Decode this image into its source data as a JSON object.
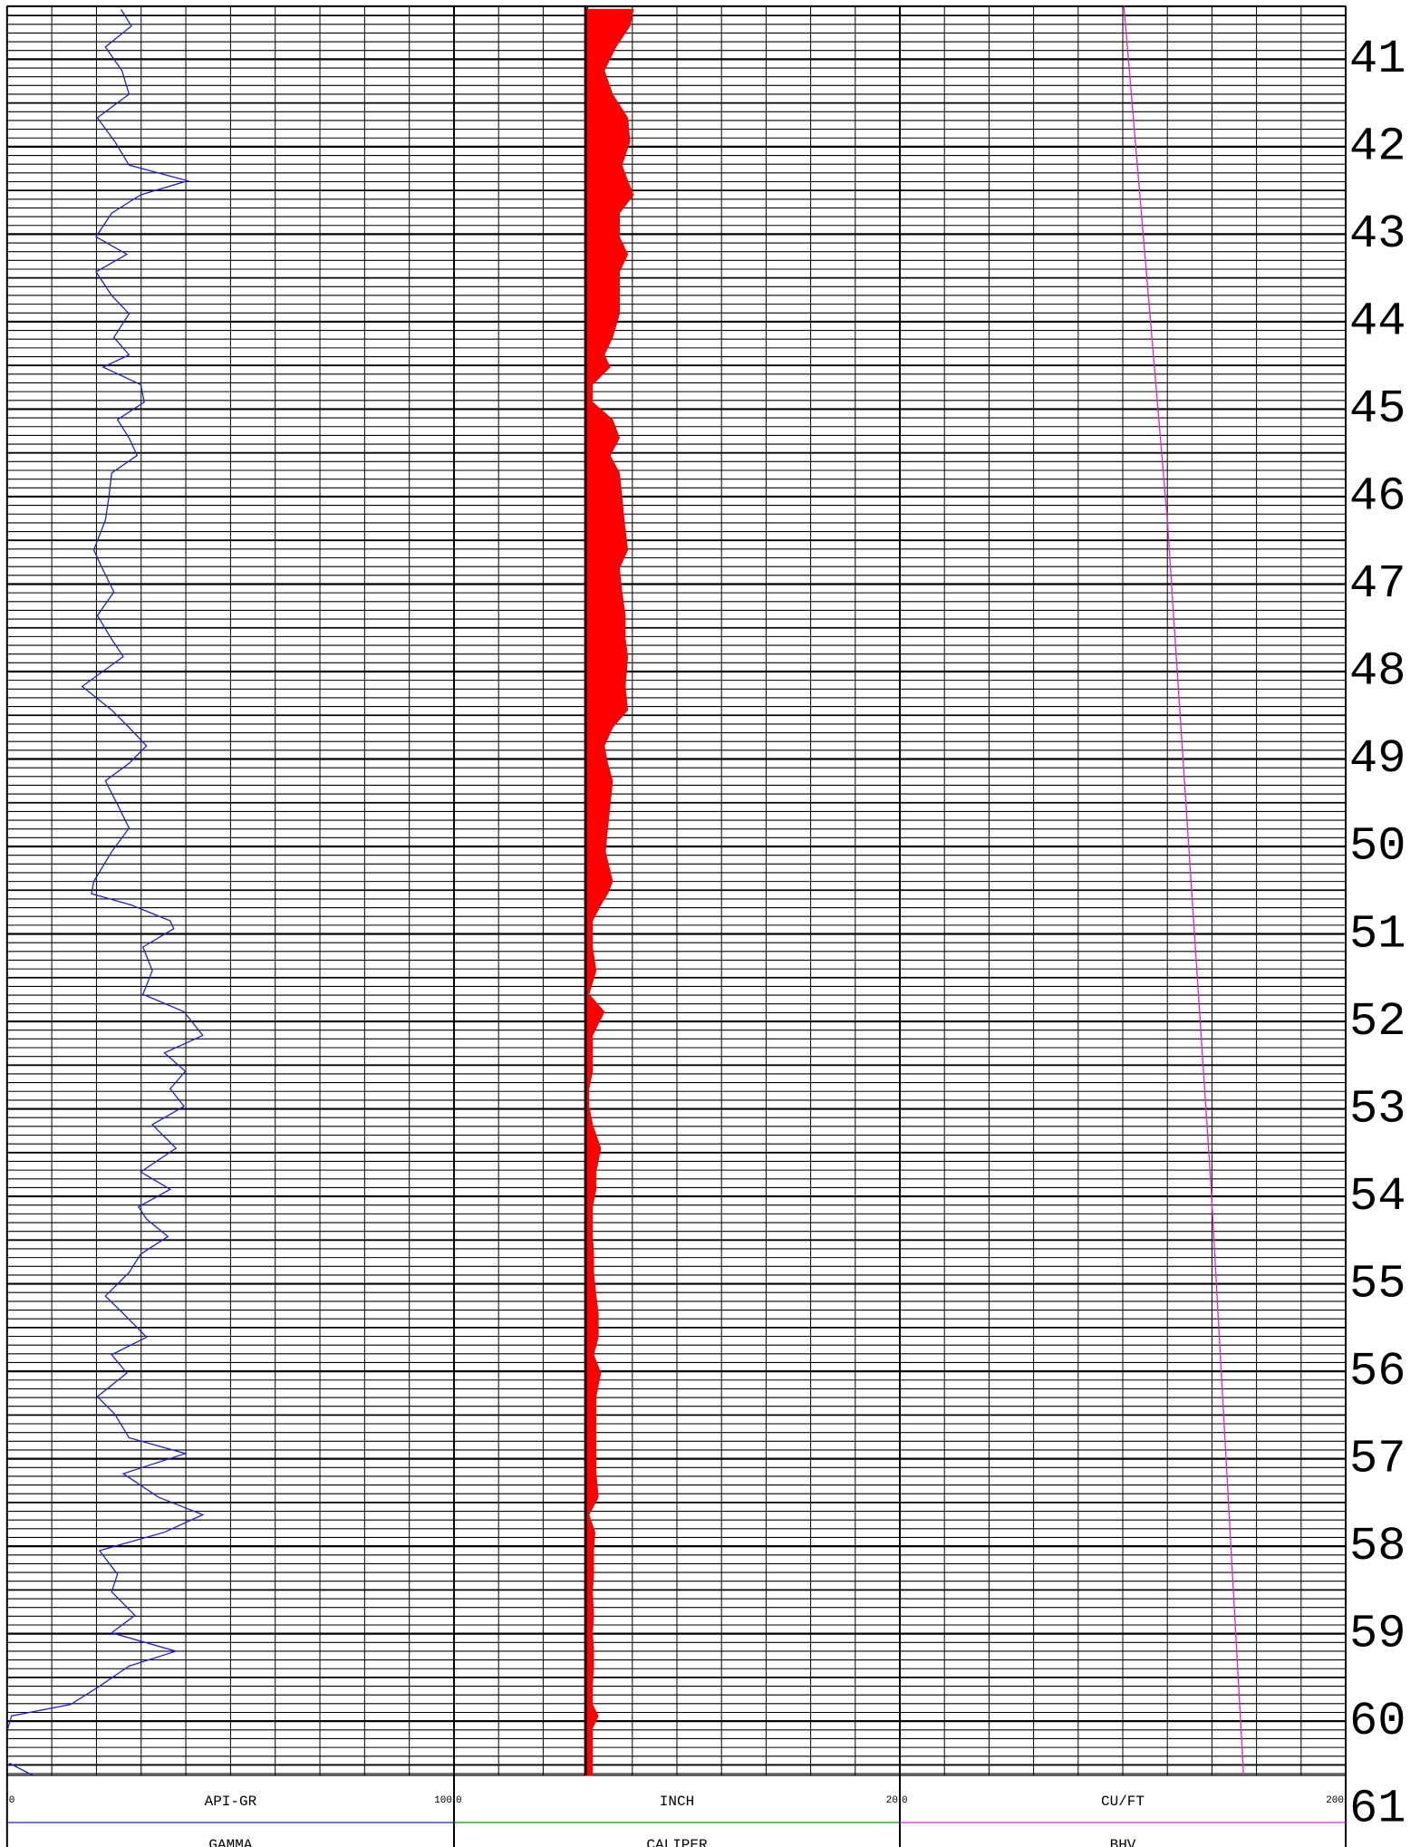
{
  "chart_data": {
    "type": "log",
    "ylim": [
      40.39,
      60.62
    ],
    "depth_ticks": [
      41,
      42,
      43,
      44,
      45,
      46,
      47,
      48,
      49,
      50,
      51,
      52,
      53,
      54,
      55,
      56,
      57,
      58,
      59,
      60,
      61
    ],
    "grid": true,
    "tracks": [
      {
        "xlabel": "API-GR",
        "xlim": [
          0,
          100
        ],
        "xticks": [
          0,
          100
        ],
        "series": [
          {
            "name": "GAMMA",
            "color": "#2020d0",
            "depth": [
              40.43,
              40.62,
              40.86,
              41.13,
              41.4,
              41.67,
              41.94,
              42.21,
              42.39,
              42.55,
              42.76,
              43.03,
              43.23,
              43.43,
              43.7,
              43.91,
              44.18,
              44.38,
              44.52,
              44.72,
              44.92,
              45.12,
              45.33,
              45.53,
              45.73,
              46.0,
              46.27,
              46.61,
              46.82,
              47.09,
              47.36,
              47.63,
              47.83,
              48.17,
              48.44,
              48.64,
              48.85,
              49.05,
              49.25,
              49.52,
              49.79,
              50.06,
              50.4,
              50.54,
              50.67,
              50.85,
              50.94,
              51.15,
              51.42,
              51.69,
              51.89,
              52.16,
              52.36,
              52.57,
              52.77,
              52.97,
              53.18,
              53.45,
              53.72,
              53.92,
              54.12,
              54.26,
              54.46,
              54.66,
              54.87,
              55.14,
              55.34,
              55.61,
              55.81,
              56.02,
              56.29,
              56.49,
              56.76,
              56.94,
              57.17,
              57.44,
              57.64,
              57.84,
              58.05,
              58.32,
              58.52,
              58.79,
              58.99,
              59.2,
              59.37,
              59.6,
              59.81,
              59.94,
              60.08,
              60.3,
              60.48,
              60.62
            ],
            "values": [
              25.5,
              27.8,
              22.0,
              25.7,
              27.3,
              20.2,
              24.1,
              27.3,
              40.4,
              29.9,
              23.4,
              19.9,
              26.8,
              19.9,
              23.4,
              27.3,
              23.9,
              27.3,
              21.5,
              29.9,
              30.7,
              24.7,
              27.3,
              29.1,
              23.4,
              22.8,
              22.0,
              19.4,
              21.3,
              23.9,
              20.2,
              23.4,
              26.0,
              16.8,
              23.4,
              27.3,
              31.2,
              27.3,
              22.0,
              24.7,
              27.3,
              23.4,
              19.4,
              18.9,
              27.8,
              36.5,
              37.3,
              30.4,
              32.5,
              30.4,
              39.6,
              43.8,
              35.2,
              39.9,
              36.5,
              39.6,
              32.5,
              37.8,
              29.9,
              36.5,
              29.4,
              31.2,
              36.0,
              29.9,
              27.3,
              22.0,
              26.0,
              31.2,
              23.4,
              26.8,
              20.2,
              24.1,
              27.3,
              39.9,
              26.0,
              33.9,
              43.8,
              35.2,
              20.7,
              24.7,
              23.4,
              28.6,
              23.4,
              37.8,
              27.3,
              20.7,
              14.2,
              1.0,
              0.2,
              null,
              0.5,
              5.8
            ]
          }
        ]
      },
      {
        "xlabel": "INCH",
        "xlim": [
          0,
          20
        ],
        "xticks": [
          0,
          20
        ],
        "series": [
          {
            "name": "CALIPER",
            "color": "#00a000",
            "fill_color": "#ff0000",
            "fill_base": 5.9,
            "depth": [
              40.43,
              40.62,
              40.86,
              41.13,
              41.4,
              41.67,
              41.94,
              42.21,
              42.39,
              42.55,
              42.76,
              43.03,
              43.23,
              43.43,
              43.7,
              43.91,
              44.18,
              44.38,
              44.52,
              44.72,
              44.92,
              45.12,
              45.33,
              45.53,
              45.73,
              46.0,
              46.27,
              46.61,
              46.82,
              47.09,
              47.36,
              47.63,
              47.83,
              48.17,
              48.44,
              48.64,
              48.85,
              49.05,
              49.25,
              49.52,
              49.79,
              50.06,
              50.4,
              50.54,
              50.67,
              50.85,
              50.94,
              51.15,
              51.42,
              51.69,
              51.89,
              52.16,
              52.36,
              52.57,
              52.77,
              52.97,
              53.18,
              53.45,
              53.72,
              53.92,
              54.12,
              54.26,
              54.46,
              54.66,
              54.87,
              55.14,
              55.34,
              55.61,
              55.81,
              56.02,
              56.29,
              56.49,
              56.76,
              56.94,
              57.17,
              57.44,
              57.64,
              57.84,
              58.05,
              58.32,
              58.52,
              58.79,
              58.99,
              59.2,
              59.37,
              59.6,
              59.81,
              59.94,
              60.08,
              60.62
            ],
            "values": [
              8.05,
              7.89,
              7.26,
              6.74,
              7.11,
              7.79,
              7.89,
              7.53,
              7.79,
              8.05,
              7.42,
              7.42,
              7.79,
              7.42,
              7.42,
              7.42,
              7.11,
              6.74,
              7.0,
              6.21,
              6.21,
              7.11,
              7.42,
              7.0,
              7.42,
              7.53,
              7.63,
              7.79,
              7.42,
              7.53,
              7.68,
              7.68,
              7.79,
              7.68,
              7.79,
              7.11,
              6.74,
              6.89,
              7.11,
              7.0,
              6.89,
              6.79,
              7.11,
              6.89,
              6.58,
              6.21,
              6.21,
              6.21,
              6.37,
              6.05,
              6.74,
              6.21,
              6.21,
              6.21,
              6.05,
              6.05,
              6.21,
              6.58,
              6.37,
              6.37,
              6.21,
              6.21,
              6.21,
              6.26,
              6.26,
              6.37,
              6.47,
              6.47,
              6.26,
              6.58,
              6.37,
              6.37,
              6.37,
              6.37,
              6.37,
              6.47,
              6.05,
              6.32,
              6.26,
              6.26,
              6.21,
              6.26,
              6.21,
              6.26,
              6.26,
              6.21,
              6.21,
              6.47,
              6.21,
              6.21
            ]
          }
        ]
      },
      {
        "xlabel": "CU/FT",
        "xlim": [
          0,
          200
        ],
        "xticks": [
          0,
          200
        ],
        "series": [
          {
            "name": "BHV",
            "color": "#e020e0",
            "depth": [
              40.39,
              46.27,
              53.85,
              60.62
            ],
            "values": [
              100.5,
              120.0,
              139.5,
              154.2
            ]
          }
        ]
      }
    ]
  }
}
